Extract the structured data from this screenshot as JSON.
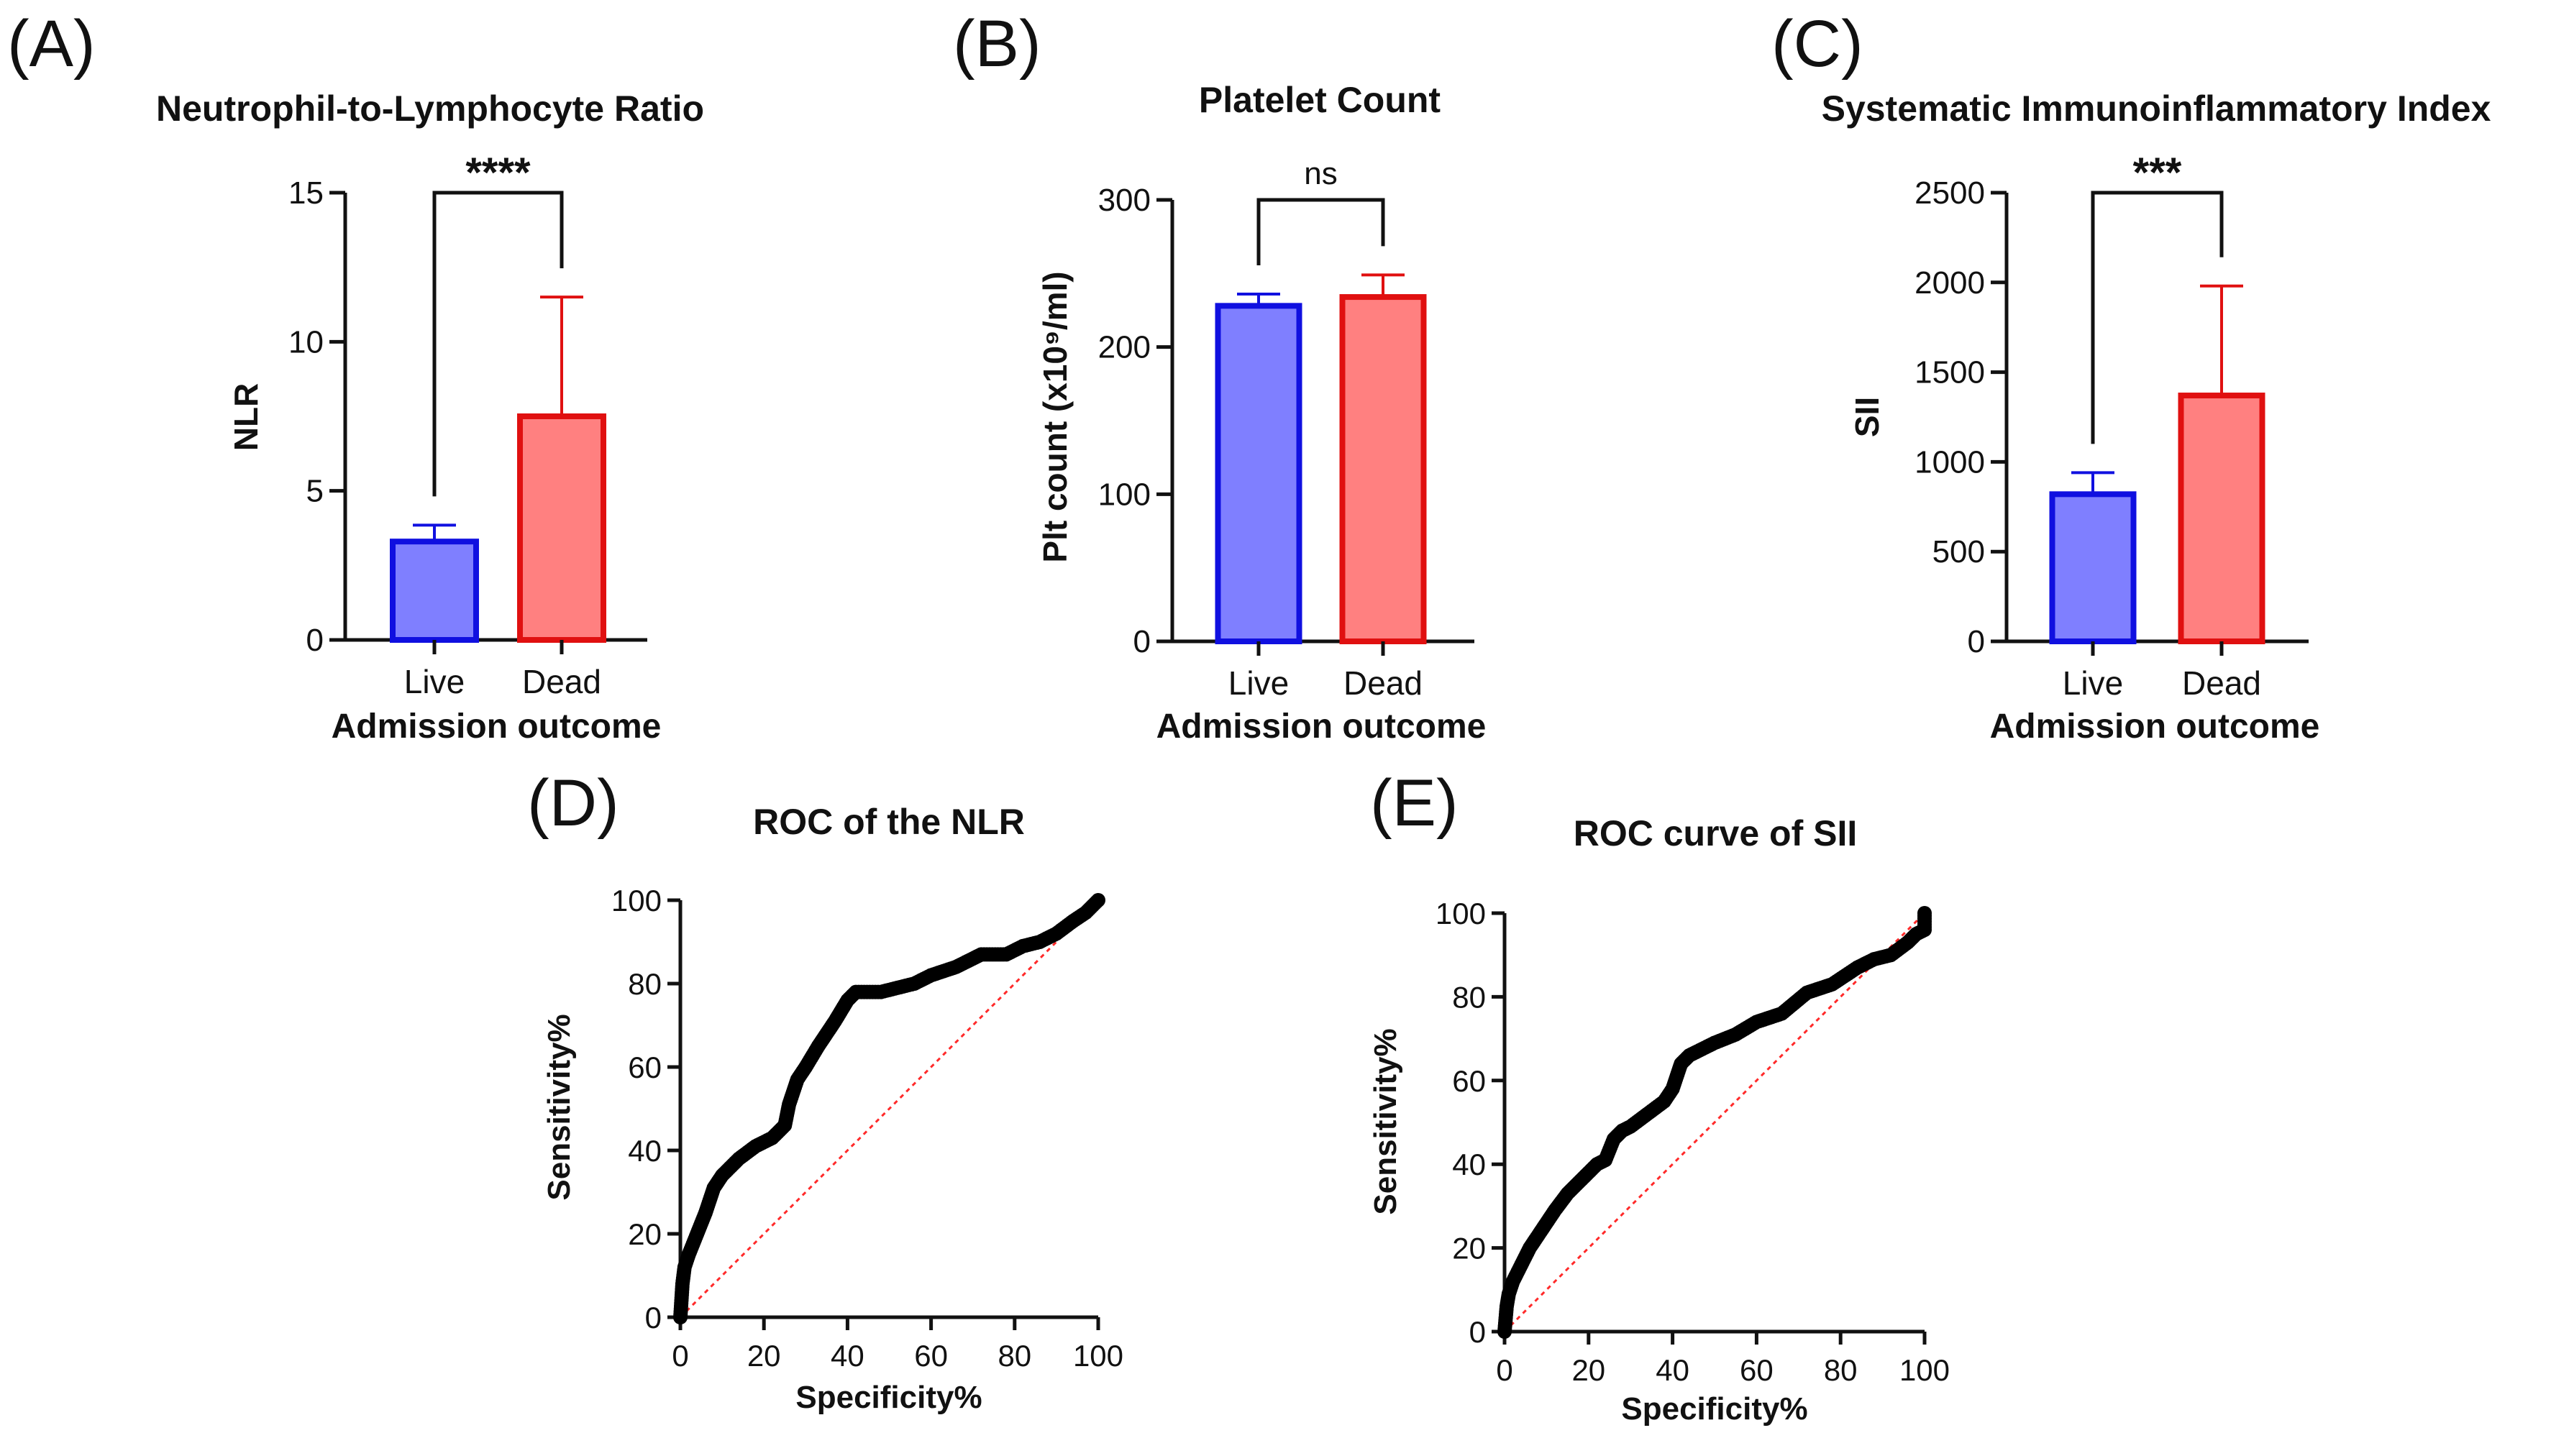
{
  "figure_labels": [
    "(A)",
    "(B)",
    "(C)",
    "(D)",
    "(E)"
  ],
  "colors": {
    "live_fill": "#7f7fff",
    "live_stroke": "#1010e0",
    "dead_fill": "#ff8080",
    "dead_stroke": "#e01010",
    "axis": "#111111",
    "roc_points": "#000000",
    "reference_line": "#ff2a2a"
  },
  "chart_data": [
    {
      "id": "A",
      "type": "bar",
      "title": "Neutrophil-to-Lymphocyte Ratio",
      "xlabel": "Admission outcome",
      "ylabel": "NLR",
      "categories": [
        "Live",
        "Dead"
      ],
      "values": [
        3.3,
        7.5
      ],
      "error_upper": [
        3.85,
        11.5
      ],
      "ylim": [
        0,
        15
      ],
      "yticks": [
        0,
        5,
        10,
        15
      ],
      "significance": "****"
    },
    {
      "id": "B",
      "type": "bar",
      "title": "Platelet Count",
      "xlabel": "Admission outcome",
      "ylabel": "Plt count (x10⁹/ml)",
      "categories": [
        "Live",
        "Dead"
      ],
      "values": [
        228,
        234
      ],
      "error_upper": [
        236,
        249
      ],
      "ylim": [
        0,
        300
      ],
      "yticks": [
        0,
        100,
        200,
        300
      ],
      "significance": "ns"
    },
    {
      "id": "C",
      "type": "bar",
      "title": "Systematic Immunoinflammatory Index",
      "xlabel": "Admission outcome",
      "ylabel": "SII",
      "categories": [
        "Live",
        "Dead"
      ],
      "values": [
        820,
        1370
      ],
      "error_upper": [
        940,
        1980
      ],
      "ylim": [
        0,
        2500
      ],
      "yticks": [
        0,
        500,
        1000,
        1500,
        2000,
        2500
      ],
      "significance": "***"
    },
    {
      "id": "D",
      "type": "line",
      "title": "ROC of the NLR",
      "xlabel": "Specificity%",
      "ylabel": "Sensitivity%",
      "xlim": [
        0,
        100
      ],
      "ylim": [
        0,
        100
      ],
      "xticks": [
        0,
        20,
        40,
        60,
        80,
        100
      ],
      "yticks": [
        0,
        20,
        40,
        60,
        80,
        100
      ],
      "reference_line": [
        [
          0,
          0
        ],
        [
          100,
          100
        ]
      ],
      "x": [
        0,
        0.5,
        1,
        2,
        4,
        6,
        8,
        10,
        14,
        18,
        22,
        25,
        26,
        28,
        30,
        33,
        35,
        37,
        40,
        42,
        48,
        52,
        56,
        60,
        66,
        70,
        72,
        78,
        82,
        86,
        90,
        94,
        97,
        100
      ],
      "y": [
        0,
        8,
        12,
        15,
        20,
        25,
        31,
        34,
        38,
        41,
        43,
        46,
        51,
        57,
        60,
        65,
        68,
        71,
        76,
        78,
        78,
        79,
        80,
        82,
        84,
        86,
        87,
        87,
        89,
        90,
        92,
        95,
        97,
        100
      ]
    },
    {
      "id": "E",
      "type": "line",
      "title": "ROC curve of SII",
      "xlabel": "Specificity%",
      "ylabel": "Sensitivity%",
      "xlim": [
        0,
        100
      ],
      "ylim": [
        0,
        100
      ],
      "xticks": [
        0,
        20,
        40,
        60,
        80,
        100
      ],
      "yticks": [
        0,
        20,
        40,
        60,
        80,
        100
      ],
      "reference_line": [
        [
          0,
          0
        ],
        [
          100,
          100
        ]
      ],
      "x": [
        0,
        0.5,
        1,
        2,
        4,
        6,
        8,
        10,
        12,
        15,
        18,
        20,
        22,
        24,
        26,
        28,
        30,
        34,
        38,
        40,
        42,
        44,
        46,
        50,
        55,
        60,
        66,
        72,
        78,
        84,
        88,
        92,
        96,
        98,
        100,
        100
      ],
      "y": [
        0,
        6,
        9,
        12,
        16,
        20,
        23,
        26,
        29,
        33,
        36,
        38,
        40,
        41,
        46,
        48,
        49,
        52,
        55,
        58,
        64,
        66,
        67,
        69,
        71,
        74,
        76,
        81,
        83,
        87,
        89,
        90,
        93,
        95,
        96,
        100
      ]
    }
  ]
}
